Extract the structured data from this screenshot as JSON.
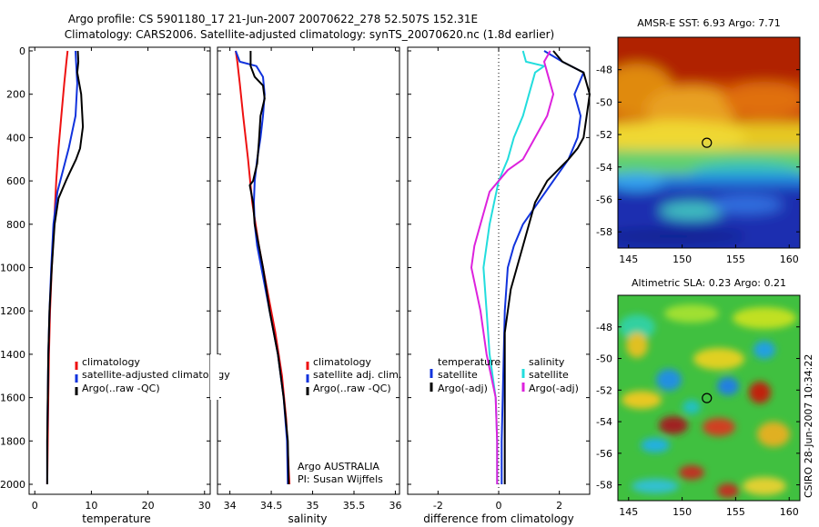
{
  "header": {
    "line1": "Argo profile: CS 5901180_17 21-Jun-2007 20070622_278 52.507S 152.31E",
    "line2": "Climatology: CARS2006. Satellite-adjusted climatology: synTS_20070620.nc (1.8d earlier)"
  },
  "colors": {
    "red": "#ee1111",
    "blue": "#1133dd",
    "black": "#000000",
    "cyan": "#22dddd",
    "magenta": "#dd22dd"
  },
  "chart_data": [
    {
      "type": "line",
      "xlabel": "temperature",
      "xlim": [
        -1,
        31
      ],
      "ylim": [
        0,
        2050
      ],
      "y_reversed": true,
      "xticks": [
        0,
        10,
        20,
        30
      ],
      "yticks": [
        0,
        200,
        400,
        600,
        800,
        1000,
        1200,
        1400,
        1600,
        1800,
        2000
      ],
      "legend": [
        "climatology",
        "satellite-adjusted climatology",
        "Argo(..raw -QC)"
      ],
      "series": [
        {
          "name": "climatology",
          "color": "red",
          "points": [
            [
              5.8,
              0
            ],
            [
              5.6,
              50
            ],
            [
              5.2,
              150
            ],
            [
              4.7,
              300
            ],
            [
              4.2,
              450
            ],
            [
              3.8,
              600
            ],
            [
              3.4,
              800
            ],
            [
              3.0,
              1000
            ],
            [
              2.7,
              1200
            ],
            [
              2.5,
              1400
            ],
            [
              2.4,
              1600
            ],
            [
              2.3,
              1800
            ],
            [
              2.2,
              2000
            ]
          ]
        },
        {
          "name": "satellite-adjusted climatology",
          "color": "blue",
          "points": [
            [
              7.2,
              0
            ],
            [
              7.3,
              50
            ],
            [
              7.5,
              150
            ],
            [
              7.2,
              300
            ],
            [
              6.0,
              450
            ],
            [
              5.0,
              550
            ],
            [
              4.0,
              650
            ],
            [
              3.3,
              800
            ],
            [
              2.9,
              1000
            ],
            [
              2.6,
              1200
            ],
            [
              2.4,
              1400
            ],
            [
              2.3,
              1600
            ],
            [
              2.2,
              1800
            ],
            [
              2.2,
              2000
            ]
          ]
        },
        {
          "name": "Argo(..raw -QC)",
          "color": "black",
          "points": [
            [
              7.6,
              0
            ],
            [
              7.7,
              50
            ],
            [
              7.5,
              100
            ],
            [
              8.2,
              200
            ],
            [
              8.5,
              350
            ],
            [
              8.0,
              450
            ],
            [
              7.3,
              500
            ],
            [
              6.2,
              560
            ],
            [
              5.5,
              600
            ],
            [
              4.2,
              680
            ],
            [
              3.5,
              800
            ],
            [
              3.0,
              1000
            ],
            [
              2.6,
              1200
            ],
            [
              2.4,
              1400
            ],
            [
              2.3,
              1600
            ],
            [
              2.2,
              1800
            ],
            [
              2.2,
              2000
            ]
          ]
        }
      ]
    },
    {
      "type": "line",
      "xlabel": "salinity",
      "xlim": [
        33.85,
        36.05
      ],
      "ylim": [
        0,
        2050
      ],
      "y_reversed": true,
      "xticks": [
        34,
        34.5,
        35,
        35.5,
        36
      ],
      "legend": [
        "climatology",
        "satellite adj. clim.",
        "Argo(..raw -QC)"
      ],
      "annotation": [
        "Argo AUSTRALIA",
        "PI: Susan Wijffels"
      ],
      "series": [
        {
          "name": "climatology",
          "color": "red",
          "points": [
            [
              34.07,
              0
            ],
            [
              34.09,
              50
            ],
            [
              34.12,
              150
            ],
            [
              34.16,
              300
            ],
            [
              34.22,
              500
            ],
            [
              34.27,
              700
            ],
            [
              34.35,
              900
            ],
            [
              34.45,
              1100
            ],
            [
              34.55,
              1300
            ],
            [
              34.63,
              1500
            ],
            [
              34.68,
              1700
            ],
            [
              34.72,
              2000
            ]
          ]
        },
        {
          "name": "satellite adj. clim.",
          "color": "blue",
          "points": [
            [
              34.07,
              0
            ],
            [
              34.12,
              50
            ],
            [
              34.32,
              70
            ],
            [
              34.4,
              120
            ],
            [
              34.42,
              200
            ],
            [
              34.4,
              300
            ],
            [
              34.37,
              400
            ],
            [
              34.33,
              500
            ],
            [
              34.3,
              600
            ],
            [
              34.29,
              700
            ],
            [
              34.3,
              800
            ],
            [
              34.33,
              900
            ],
            [
              34.38,
              1000
            ],
            [
              34.48,
              1200
            ],
            [
              34.58,
              1400
            ],
            [
              34.65,
              1600
            ],
            [
              34.69,
              1800
            ],
            [
              34.7,
              2000
            ]
          ]
        },
        {
          "name": "Argo(..raw -QC)",
          "color": "black",
          "points": [
            [
              34.25,
              0
            ],
            [
              34.25,
              70
            ],
            [
              34.3,
              120
            ],
            [
              34.4,
              160
            ],
            [
              34.42,
              220
            ],
            [
              34.37,
              300
            ],
            [
              34.35,
              420
            ],
            [
              34.33,
              520
            ],
            [
              34.28,
              600
            ],
            [
              34.24,
              620
            ],
            [
              34.28,
              700
            ],
            [
              34.3,
              800
            ],
            [
              34.35,
              900
            ],
            [
              34.4,
              1000
            ],
            [
              34.48,
              1200
            ],
            [
              34.58,
              1400
            ],
            [
              34.65,
              1600
            ],
            [
              34.7,
              1800
            ],
            [
              34.71,
              2000
            ]
          ]
        }
      ]
    },
    {
      "type": "line",
      "xlabel": "difference from climatology",
      "xlim": [
        -3,
        3
      ],
      "ylim": [
        0,
        2050
      ],
      "y_reversed": true,
      "xticks": [
        -2,
        0,
        2
      ],
      "legend_columns": [
        {
          "title": "temperature",
          "entries": [
            "satellite",
            "Argo(-adj)"
          ]
        },
        {
          "title": "salinity",
          "entries": [
            "satellite",
            "Argo(-adj)"
          ]
        }
      ],
      "series": [
        {
          "name": "temperature satellite",
          "color": "blue",
          "points": [
            [
              1.5,
              0
            ],
            [
              2.1,
              50
            ],
            [
              2.8,
              100
            ],
            [
              2.5,
              200
            ],
            [
              2.7,
              300
            ],
            [
              2.6,
              400
            ],
            [
              2.3,
              500
            ],
            [
              1.8,
              600
            ],
            [
              1.3,
              700
            ],
            [
              0.8,
              800
            ],
            [
              0.5,
              900
            ],
            [
              0.3,
              1000
            ],
            [
              0.2,
              1200
            ],
            [
              0.15,
              1500
            ],
            [
              0.1,
              1800
            ],
            [
              0.1,
              2000
            ]
          ]
        },
        {
          "name": "temperature Argo(-adj)",
          "color": "black",
          "points": [
            [
              1.8,
              0
            ],
            [
              2.1,
              50
            ],
            [
              2.8,
              100
            ],
            [
              3.0,
              200
            ],
            [
              2.9,
              300
            ],
            [
              2.8,
              400
            ],
            [
              2.6,
              450
            ],
            [
              2.3,
              500
            ],
            [
              1.6,
              600
            ],
            [
              1.2,
              700
            ],
            [
              0.8,
              900
            ],
            [
              0.6,
              1000
            ],
            [
              0.4,
              1100
            ],
            [
              0.2,
              1300
            ],
            [
              0.2,
              2000
            ]
          ]
        },
        {
          "name": "salinity satellite",
          "color": "cyan",
          "points": [
            [
              0.8,
              0
            ],
            [
              0.9,
              50
            ],
            [
              1.5,
              70
            ],
            [
              1.2,
              100
            ],
            [
              1.0,
              200
            ],
            [
              0.8,
              300
            ],
            [
              0.5,
              400
            ],
            [
              0.3,
              500
            ],
            [
              0.0,
              600
            ],
            [
              -0.3,
              800
            ],
            [
              -0.5,
              1000
            ],
            [
              -0.4,
              1200
            ],
            [
              -0.3,
              1400
            ],
            [
              -0.1,
              1600
            ],
            [
              -0.05,
              1800
            ],
            [
              -0.05,
              2000
            ]
          ]
        },
        {
          "name": "salinity Argo(-adj)",
          "color": "magenta",
          "points": [
            [
              1.7,
              0
            ],
            [
              1.5,
              50
            ],
            [
              1.6,
              100
            ],
            [
              1.8,
              200
            ],
            [
              1.6,
              300
            ],
            [
              1.2,
              400
            ],
            [
              0.8,
              500
            ],
            [
              0.3,
              550
            ],
            [
              -0.3,
              650
            ],
            [
              -0.8,
              900
            ],
            [
              -0.9,
              1000
            ],
            [
              -0.6,
              1200
            ],
            [
              -0.4,
              1400
            ],
            [
              -0.1,
              1600
            ],
            [
              -0.05,
              1800
            ],
            [
              -0.05,
              2000
            ]
          ]
        }
      ]
    },
    {
      "type": "heatmap",
      "title": "AMSR-E SST: 6.93 Argo: 7.71",
      "xlim": [
        144,
        161
      ],
      "ylim": [
        -59,
        -46
      ],
      "xticks": [
        145,
        150,
        155,
        160
      ],
      "yticks": [
        -48,
        -50,
        -52,
        -54,
        -56,
        -58
      ],
      "marker": [
        152.31,
        -52.507
      ]
    },
    {
      "type": "heatmap",
      "title": "Altimetric SLA: 0.23 Argo: 0.21",
      "xlim": [
        144,
        161
      ],
      "ylim": [
        -59,
        -46
      ],
      "xticks": [
        145,
        150,
        155,
        160
      ],
      "yticks": [
        -48,
        -50,
        -52,
        -54,
        -56,
        -58
      ],
      "marker": [
        152.31,
        -52.507
      ]
    }
  ],
  "footer": {
    "credit": "CSIRO 28-Jun-2007 10:34:22"
  }
}
